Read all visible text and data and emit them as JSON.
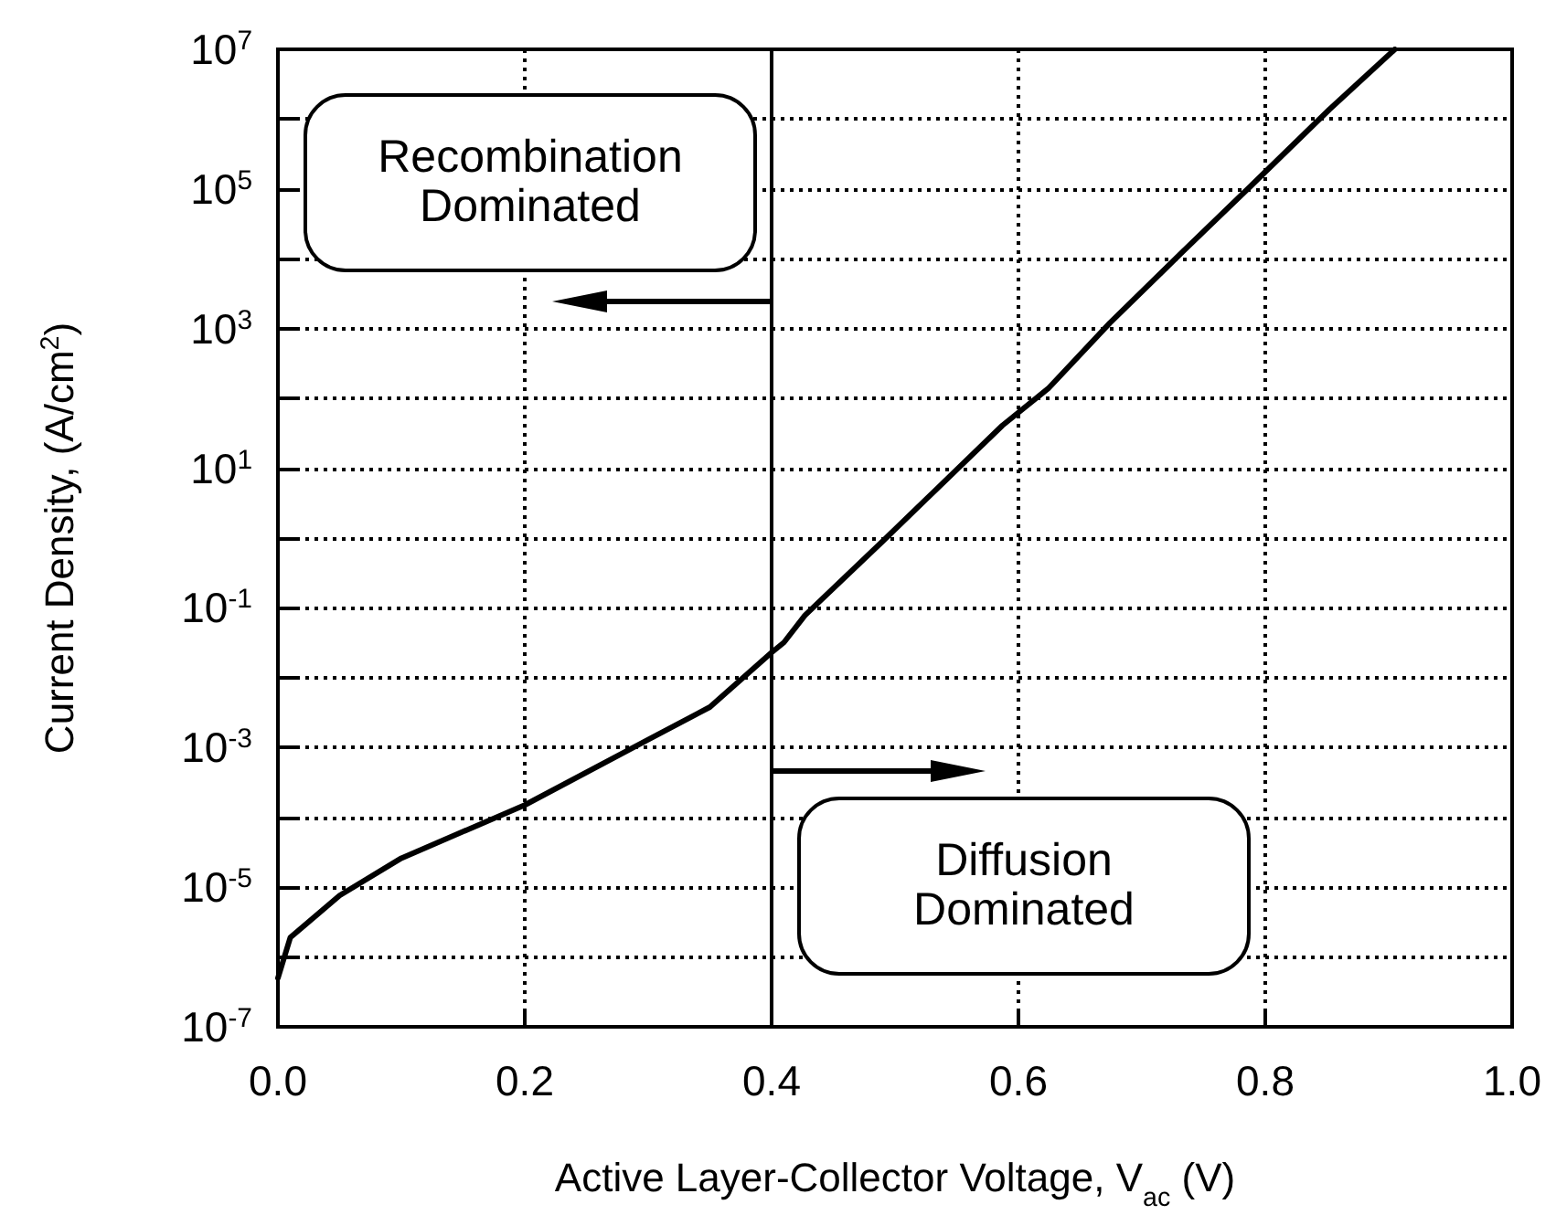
{
  "chart_data": {
    "type": "line",
    "xlabel": "Active Layer-Collector Voltage, V$_{ac}$ (V)",
    "ylabel": "Current Density, (A/cm$^{2}$)",
    "x": [
      0,
      0.01,
      0.05,
      0.1,
      0.2,
      0.3,
      0.35,
      0.4,
      0.41,
      0.427,
      0.49,
      0.587,
      0.624,
      0.674,
      0.733,
      0.787,
      0.852,
      0.905
    ],
    "series": [
      {
        "color": "#000000",
        "values": [
          5e-07,
          1.9e-06,
          7.6e-06,
          2.6e-05,
          0.00015,
          0.0013,
          0.0038,
          0.023,
          0.032,
          0.078,
          0.9,
          41,
          138,
          1200,
          12600,
          105000,
          1380000,
          10000000
        ]
      }
    ],
    "xlim": [
      0,
      1
    ],
    "xticks": [
      {
        "value": 0,
        "label": "0.0"
      },
      0.2,
      0.4,
      0.6,
      0.8,
      {
        "value": 1,
        "label": "1.0"
      }
    ],
    "ylim": [
      1e-07,
      10000000
    ],
    "yticks": [
      {
        "value": 1e-07,
        "label": "10$^{-7}$"
      },
      {
        "value": 1e-06,
        "label": null
      },
      {
        "value": 1e-05,
        "label": "10$^{-5}$"
      },
      {
        "value": 0.0001,
        "label": null
      },
      {
        "value": 0.001,
        "label": "10$^{-3}$"
      },
      {
        "value": 0.01,
        "label": null
      },
      {
        "value": 0.1,
        "label": "10$^{-1}$"
      },
      {
        "value": 1,
        "label": null
      },
      {
        "value": 10,
        "label": "10$^{1}$"
      },
      {
        "value": 100,
        "label": null
      },
      {
        "value": 1000,
        "label": "10$^{3}$"
      },
      {
        "value": 10000,
        "label": null
      },
      {
        "value": 100000,
        "label": "10$^{5}$"
      },
      {
        "value": 1000000,
        "label": null
      },
      {
        "value": 10000000,
        "label": "10$^{7}$"
      }
    ],
    "log": "y",
    "grid": true,
    "marker": "none",
    "line_style": "solid",
    "ref_lines": [
      {
        "axis": "x",
        "value": 0.4,
        "color": "#000000",
        "line_style": "solid"
      }
    ],
    "annotations": [
      "Recombination Dominated",
      "Diffusion Dominated"
    ]
  }
}
